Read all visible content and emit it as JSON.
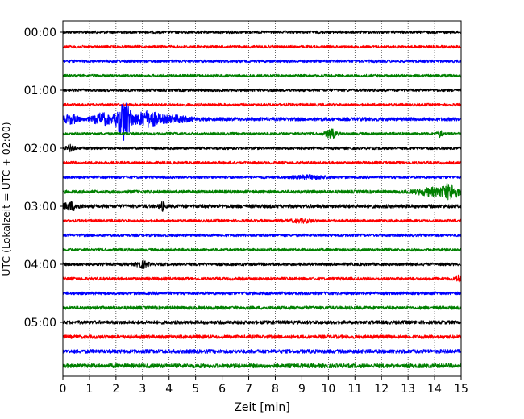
{
  "chart_data": {
    "type": "line",
    "title": "",
    "xlabel": "Zeit  [min]",
    "ylabel": "UTC (Lokalzeit = UTC + 02:00)",
    "xlim": [
      0,
      15
    ],
    "x_ticks": [
      "0",
      "1",
      "2",
      "3",
      "4",
      "5",
      "6",
      "7",
      "8",
      "9",
      "10",
      "11",
      "12",
      "13",
      "14",
      "15"
    ],
    "y_ticks": [
      "00:00",
      "01:00",
      "02:00",
      "03:00",
      "04:00",
      "05:00"
    ],
    "grid": "vertical dotted lines at each minute",
    "trace_interval_minutes": 15,
    "colors": [
      "#000000",
      "#ff0000",
      "#0000ff",
      "#008000"
    ],
    "series": [
      {
        "start": "00:00",
        "color": "#000000",
        "amplitude": 1.0,
        "events": []
      },
      {
        "start": "00:15",
        "color": "#ff0000",
        "amplitude": 1.0,
        "events": []
      },
      {
        "start": "00:30",
        "color": "#0000ff",
        "amplitude": 1.0,
        "events": []
      },
      {
        "start": "00:45",
        "color": "#008000",
        "amplitude": 1.0,
        "events": []
      },
      {
        "start": "01:00",
        "color": "#000000",
        "amplitude": 1.0,
        "events": []
      },
      {
        "start": "01:15",
        "color": "#ff0000",
        "amplitude": 1.0,
        "events": []
      },
      {
        "start": "01:30",
        "color": "#0000ff",
        "amplitude": 1.3,
        "events": [
          {
            "t": 0.3,
            "amp": 3,
            "width": 0.3
          },
          {
            "t": 1.5,
            "amp": 4,
            "width": 0.35
          },
          {
            "t": 2.3,
            "amp": 12,
            "width": 0.25
          },
          {
            "t": 3.2,
            "amp": 5,
            "width": 0.5
          },
          {
            "t": 4.3,
            "amp": 2.5,
            "width": 0.5
          }
        ]
      },
      {
        "start": "01:45",
        "color": "#008000",
        "amplitude": 1.0,
        "events": [
          {
            "t": 10.1,
            "amp": 4,
            "width": 0.2
          },
          {
            "t": 14.2,
            "amp": 3,
            "width": 0.1
          }
        ]
      },
      {
        "start": "02:00",
        "color": "#000000",
        "amplitude": 1.0,
        "events": [
          {
            "t": 0.3,
            "amp": 3,
            "width": 0.15
          }
        ]
      },
      {
        "start": "02:15",
        "color": "#ff0000",
        "amplitude": 1.0,
        "events": []
      },
      {
        "start": "02:30",
        "color": "#0000ff",
        "amplitude": 1.0,
        "events": [
          {
            "t": 9.3,
            "amp": 2,
            "width": 0.6
          }
        ]
      },
      {
        "start": "02:45",
        "color": "#008000",
        "amplitude": 1.2,
        "events": [
          {
            "t": 13.9,
            "amp": 3,
            "width": 0.6
          },
          {
            "t": 14.6,
            "amp": 5,
            "width": 0.3
          }
        ]
      },
      {
        "start": "03:00",
        "color": "#000000",
        "amplitude": 1.3,
        "events": [
          {
            "t": 0.3,
            "amp": 3,
            "width": 0.25
          },
          {
            "t": 3.75,
            "amp": 3,
            "width": 0.1
          }
        ]
      },
      {
        "start": "03:15",
        "color": "#ff0000",
        "amplitude": 1.0,
        "events": [
          {
            "t": 9.0,
            "amp": 2,
            "width": 0.4
          }
        ]
      },
      {
        "start": "03:30",
        "color": "#0000ff",
        "amplitude": 1.0,
        "events": []
      },
      {
        "start": "03:45",
        "color": "#008000",
        "amplitude": 1.0,
        "events": []
      },
      {
        "start": "04:00",
        "color": "#000000",
        "amplitude": 1.1,
        "events": [
          {
            "t": 3.0,
            "amp": 3,
            "width": 0.2
          }
        ]
      },
      {
        "start": "04:15",
        "color": "#ff0000",
        "amplitude": 1.1,
        "events": [
          {
            "t": 14.9,
            "amp": 3,
            "width": 0.1
          }
        ]
      },
      {
        "start": "04:30",
        "color": "#0000ff",
        "amplitude": 1.1,
        "events": []
      },
      {
        "start": "04:45",
        "color": "#008000",
        "amplitude": 1.2,
        "events": []
      },
      {
        "start": "05:00",
        "color": "#000000",
        "amplitude": 1.3,
        "events": []
      },
      {
        "start": "05:15",
        "color": "#ff0000",
        "amplitude": 1.3,
        "events": []
      },
      {
        "start": "05:30",
        "color": "#0000ff",
        "amplitude": 1.4,
        "events": []
      },
      {
        "start": "05:45",
        "color": "#008000",
        "amplitude": 1.5,
        "events": []
      }
    ]
  }
}
